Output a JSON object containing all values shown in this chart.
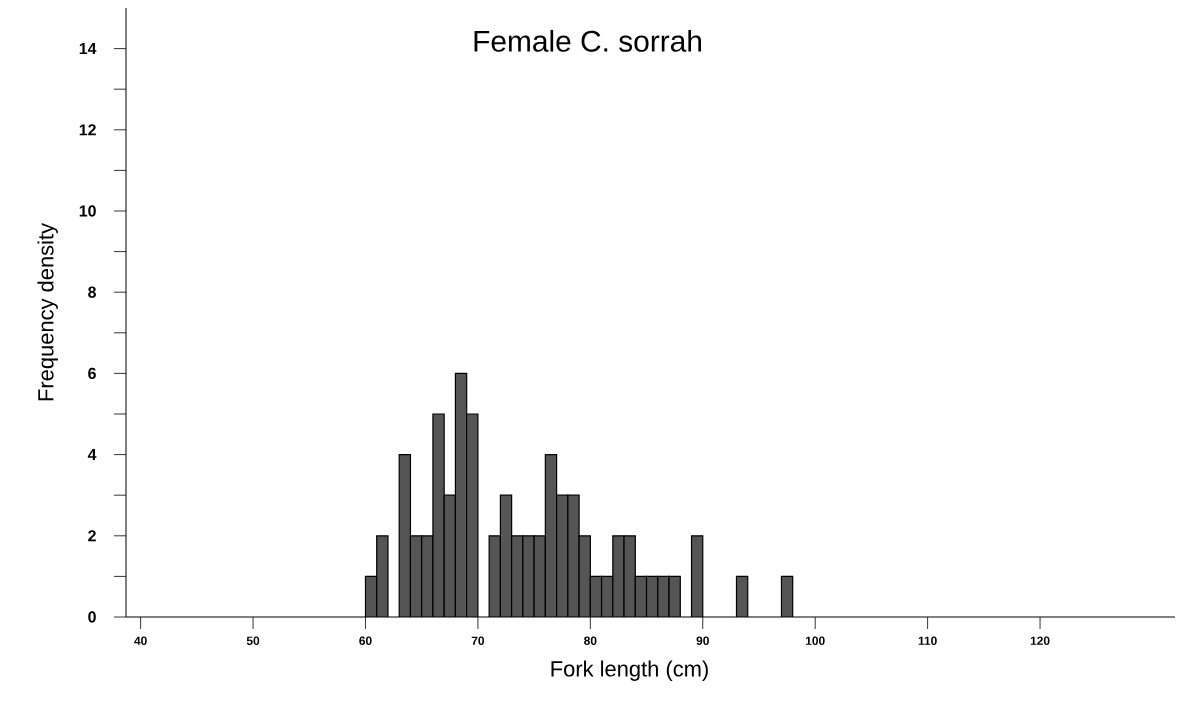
{
  "chart_data": {
    "type": "histogram",
    "title": "Female C. sorrah",
    "xlabel": "Fork length (cm)",
    "ylabel": "Frequency density",
    "bins": [
      60,
      61,
      62,
      63,
      64,
      65,
      66,
      67,
      68,
      69,
      70,
      71,
      72,
      73,
      74,
      75,
      76,
      77,
      78,
      79,
      80,
      81,
      82,
      83,
      84,
      85,
      86,
      87,
      88,
      89,
      90,
      91,
      92,
      93,
      94,
      95,
      96,
      97,
      98
    ],
    "values": [
      1,
      2,
      0,
      4,
      2,
      2,
      5,
      3,
      6,
      5,
      0,
      2,
      3,
      2,
      2,
      2,
      4,
      3,
      3,
      2,
      1,
      1,
      2,
      2,
      1,
      1,
      1,
      1,
      0,
      2,
      0,
      0,
      0,
      1,
      0,
      0,
      0,
      1
    ],
    "color": "#555555",
    "xlim": [
      38.7,
      132
    ],
    "ylim": [
      0,
      15
    ],
    "xticks": [
      40,
      50,
      60,
      70,
      80,
      90,
      100,
      110,
      120
    ],
    "yticks": [
      0,
      {
        "value": 1,
        "label": null
      },
      2,
      {
        "value": 3,
        "label": null
      },
      4,
      {
        "value": 5,
        "label": null
      },
      6,
      {
        "value": 7,
        "label": null
      },
      8,
      {
        "value": 9,
        "label": null
      },
      10,
      {
        "value": 11,
        "label": null
      },
      12,
      {
        "value": 13,
        "label": null
      },
      14
    ],
    "grid": false
  }
}
